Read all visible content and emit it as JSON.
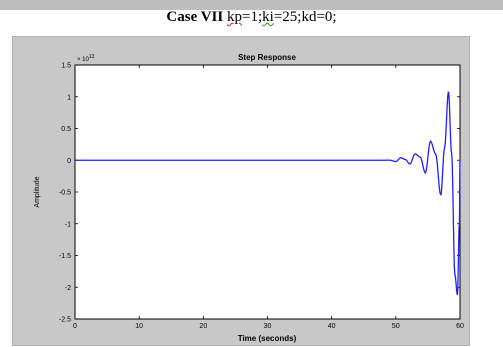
{
  "page_title": {
    "lead": "Case VII",
    "parts": [
      "kp",
      "=1;",
      "ki",
      "=25;kd=0;"
    ]
  },
  "chart_data": {
    "type": "line",
    "title": "Step Response",
    "xlabel": "Time (seconds)",
    "ylabel": "Amplitude",
    "xlim": [
      0,
      60
    ],
    "ylim": [
      -2.5,
      1.5
    ],
    "y_scale_note": "× 10",
    "y_scale_exponent": "13",
    "xticks": [
      0,
      10,
      20,
      30,
      40,
      50,
      60
    ],
    "xtick_labels": [
      "0",
      "10",
      "20",
      "30",
      "40",
      "50",
      "60"
    ],
    "yticks": [
      -2.5,
      -2,
      -1.5,
      -1,
      -0.5,
      0,
      0.5,
      1,
      1.5
    ],
    "ytick_labels": [
      "-2.5",
      "-2",
      "-1.5",
      "-1",
      "-0.5",
      "0",
      "0.5",
      "1",
      "1.5"
    ],
    "grid": false,
    "series": [
      {
        "color": "#1f1fff",
        "x": [
          0,
          10,
          20,
          30,
          40,
          48,
          49,
          50,
          50.8,
          51.5,
          52.2,
          53,
          53.8,
          54.6,
          55.4,
          56.2,
          57,
          57.6,
          58.2,
          58.7,
          59.2,
          59.6,
          59.9,
          60
        ],
        "y": [
          0,
          0,
          0,
          0,
          0,
          0,
          0.002,
          -0.02,
          0.04,
          0.01,
          -0.06,
          0.1,
          0.05,
          -0.2,
          0.3,
          0.1,
          -0.55,
          0.2,
          1.08,
          0.1,
          -1.8,
          -2.12,
          -1.0,
          0.0
        ]
      }
    ]
  }
}
